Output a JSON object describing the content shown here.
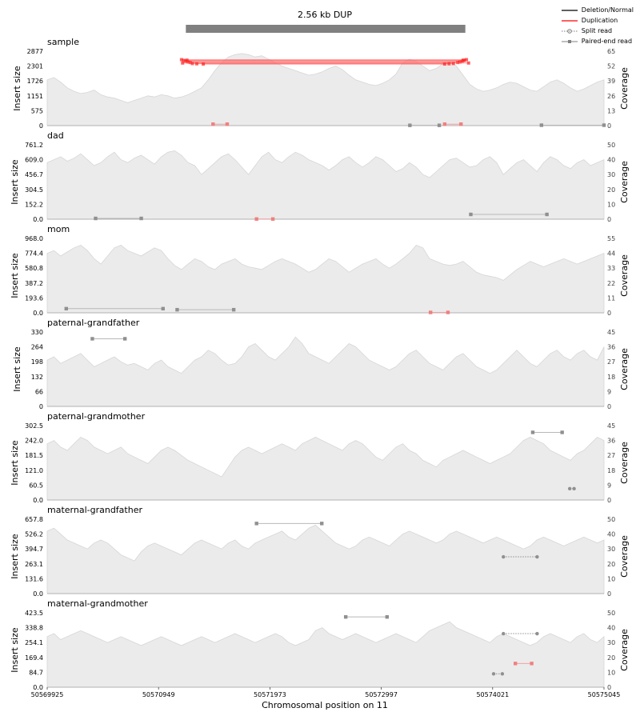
{
  "chart_data": {
    "type": "line",
    "title": "2.56 kb DUP",
    "xlabel": "Chromosomal position on 11",
    "x_ticks": [
      "50569925",
      "50570949",
      "50571973",
      "50572997",
      "50574021",
      "50575045"
    ],
    "xlim": [
      50569925,
      50575045
    ],
    "sv_interval": [
      50571200,
      50573770
    ],
    "left_axis_label": "Insert size",
    "right_axis_label": "Coverage",
    "legend": [
      {
        "label": "Deletion/Normal",
        "color": "#000000",
        "style": "solid"
      },
      {
        "label": "Duplication",
        "color": "#ff0000",
        "style": "solid"
      },
      {
        "label": "Split read",
        "color": "#808080",
        "style": "dotted-circle"
      },
      {
        "label": "Paired-end read",
        "color": "#808080",
        "style": "solid-square"
      }
    ],
    "samples": [
      {
        "name": "sample",
        "ylim": [
          0,
          2877
        ],
        "yticks": [
          "0",
          "575",
          "1151",
          "1726",
          "2301",
          "2877"
        ],
        "cov_max": 65,
        "cov_ticks": [
          "0",
          "13",
          "26",
          "39",
          "52",
          "65"
        ],
        "coverage_profile": [
          40,
          42,
          38,
          33,
          30,
          28,
          29,
          31,
          27,
          25,
          24,
          22,
          20,
          22,
          24,
          26,
          25,
          27,
          26,
          24,
          25,
          27,
          30,
          33,
          40,
          48,
          55,
          60,
          62,
          63,
          62,
          60,
          61,
          58,
          55,
          52,
          50,
          48,
          46,
          44,
          45,
          47,
          50,
          52,
          49,
          44,
          40,
          38,
          36,
          35,
          37,
          40,
          45,
          55,
          58,
          56,
          52,
          48,
          50,
          54,
          56,
          52,
          44,
          36,
          32,
          30,
          31,
          33,
          36,
          38,
          37,
          34,
          31,
          30,
          34,
          38,
          40,
          37,
          33,
          30,
          32,
          35,
          38,
          40
        ],
        "pairs": [
          {
            "type": "dup",
            "x1": 50571450,
            "x2": 50571580,
            "y": 55
          },
          {
            "type": "pe",
            "x1": 50573260,
            "x2": 50573530,
            "y": 10
          },
          {
            "type": "dup",
            "x1": 50573580,
            "x2": 50573730,
            "y": 56
          },
          {
            "type": "pe",
            "x1": 50574470,
            "x2": 50575045,
            "y": 16
          }
        ],
        "dup_arcs": [
          {
            "x1": 50571160,
            "x2": 50573780,
            "y": 2550
          },
          {
            "x1": 50571180,
            "x2": 50573760,
            "y": 2520
          },
          {
            "x1": 50571200,
            "x2": 50573740,
            "y": 2490
          },
          {
            "x1": 50571220,
            "x2": 50573720,
            "y": 2460
          },
          {
            "x1": 50571240,
            "x2": 50573700,
            "y": 2440
          },
          {
            "x1": 50571170,
            "x2": 50573800,
            "y": 2420
          },
          {
            "x1": 50571260,
            "x2": 50573660,
            "y": 2400
          },
          {
            "x1": 50571300,
            "x2": 50573620,
            "y": 2390
          },
          {
            "x1": 50571360,
            "x2": 50573580,
            "y": 2380
          },
          {
            "x1": 50571210,
            "x2": 50573750,
            "y": 2530
          }
        ]
      },
      {
        "name": "dad",
        "ylim": [
          0,
          761.2
        ],
        "yticks": [
          "0.0",
          "152.2",
          "304.5",
          "456.7",
          "609.0",
          "761.2"
        ],
        "cov_max": 50,
        "cov_ticks": [
          "0",
          "10",
          "20",
          "30",
          "40",
          "50"
        ],
        "coverage_profile": [
          38,
          40,
          42,
          39,
          41,
          44,
          40,
          36,
          38,
          42,
          45,
          40,
          38,
          41,
          43,
          40,
          37,
          42,
          45,
          46,
          43,
          38,
          36,
          30,
          34,
          38,
          42,
          44,
          40,
          35,
          30,
          36,
          42,
          45,
          40,
          38,
          42,
          45,
          43,
          40,
          38,
          36,
          33,
          36,
          40,
          42,
          38,
          35,
          38,
          42,
          40,
          36,
          32,
          34,
          38,
          35,
          30,
          28,
          32,
          36,
          40,
          41,
          38,
          35,
          36,
          40,
          42,
          38,
          30,
          34,
          38,
          40,
          36,
          32,
          38,
          42,
          40,
          36,
          34,
          38,
          40,
          36,
          38,
          40
        ],
        "pairs": [
          {
            "type": "pe",
            "x1": 50570370,
            "x2": 50570790,
            "y": 8
          },
          {
            "type": "dup",
            "x1": 50571850,
            "x2": 50572000,
            "y": 2
          },
          {
            "type": "pe",
            "x1": 50573820,
            "x2": 50574520,
            "y": 49
          }
        ]
      },
      {
        "name": "mom",
        "ylim": [
          0,
          968.0
        ],
        "yticks": [
          "0.0",
          "193.6",
          "387.2",
          "580.8",
          "774.4",
          "968.0"
        ],
        "cov_max": 55,
        "cov_ticks": [
          "0",
          "11",
          "22",
          "33",
          "44",
          "55"
        ],
        "coverage_profile": [
          44,
          46,
          42,
          45,
          48,
          50,
          46,
          40,
          36,
          42,
          48,
          50,
          46,
          44,
          42,
          45,
          48,
          46,
          40,
          35,
          32,
          36,
          40,
          38,
          34,
          32,
          36,
          38,
          40,
          36,
          34,
          33,
          32,
          35,
          38,
          40,
          38,
          36,
          33,
          30,
          32,
          36,
          40,
          38,
          34,
          30,
          33,
          36,
          38,
          40,
          36,
          33,
          36,
          40,
          44,
          50,
          48,
          40,
          38,
          36,
          35,
          36,
          38,
          34,
          30,
          28,
          27,
          26,
          24,
          28,
          32,
          35,
          38,
          36,
          34,
          36,
          38,
          40,
          38,
          36,
          38,
          40,
          42,
          44
        ],
        "pairs": [
          {
            "type": "pe",
            "x1": 50570100,
            "x2": 50570990,
            "y": 54
          },
          {
            "type": "pe",
            "x1": 50571120,
            "x2": 50571640,
            "y": 40
          },
          {
            "type": "dup",
            "x1": 50573450,
            "x2": 50573610,
            "y": 5
          }
        ]
      },
      {
        "name": "paternal-grandfather",
        "ylim": [
          0,
          330
        ],
        "yticks": [
          "0",
          "66",
          "132",
          "198",
          "264",
          "330"
        ],
        "cov_max": 45,
        "cov_ticks": [
          "0",
          "9",
          "18",
          "27",
          "36",
          "45"
        ],
        "coverage_profile": [
          28,
          30,
          26,
          28,
          30,
          32,
          28,
          24,
          26,
          28,
          30,
          27,
          25,
          26,
          24,
          22,
          26,
          28,
          24,
          22,
          20,
          24,
          28,
          30,
          34,
          32,
          28,
          25,
          26,
          30,
          36,
          38,
          34,
          30,
          28,
          32,
          36,
          42,
          38,
          32,
          30,
          28,
          26,
          30,
          34,
          38,
          36,
          32,
          28,
          26,
          24,
          22,
          24,
          28,
          32,
          34,
          30,
          26,
          24,
          22,
          26,
          30,
          32,
          28,
          24,
          22,
          20,
          22,
          26,
          30,
          34,
          30,
          26,
          24,
          28,
          32,
          34,
          30,
          28,
          32,
          34,
          30,
          28,
          36
        ],
        "pairs": [
          {
            "type": "pe",
            "x1": 50570340,
            "x2": 50570640,
            "y": 300
          }
        ]
      },
      {
        "name": "paternal-grandmother",
        "ylim": [
          0,
          302.5
        ],
        "yticks": [
          "0.0",
          "60.5",
          "121.0",
          "181.5",
          "242.0",
          "302.5"
        ],
        "cov_max": 45,
        "cov_ticks": [
          "0",
          "9",
          "18",
          "27",
          "36",
          "45"
        ],
        "coverage_profile": [
          34,
          36,
          32,
          30,
          34,
          38,
          36,
          32,
          30,
          28,
          30,
          32,
          28,
          26,
          24,
          22,
          26,
          30,
          32,
          30,
          27,
          24,
          22,
          20,
          18,
          16,
          14,
          20,
          26,
          30,
          32,
          30,
          28,
          30,
          32,
          34,
          32,
          30,
          34,
          36,
          38,
          36,
          34,
          32,
          30,
          34,
          36,
          34,
          30,
          26,
          24,
          28,
          32,
          34,
          30,
          28,
          24,
          22,
          20,
          24,
          26,
          28,
          30,
          28,
          26,
          24,
          22,
          24,
          26,
          28,
          32,
          36,
          38,
          36,
          34,
          30,
          28,
          26,
          24,
          28,
          30,
          34,
          38,
          36
        ],
        "pairs": [
          {
            "type": "pe",
            "x1": 50574390,
            "x2": 50574660,
            "y": 275
          },
          {
            "type": "split",
            "x1": 50574730,
            "x2": 50574770,
            "y": 46
          }
        ]
      },
      {
        "name": "maternal-grandfather",
        "ylim": [
          0,
          657.8
        ],
        "yticks": [
          "0.0",
          "131.6",
          "263.1",
          "394.7",
          "526.2",
          "657.8"
        ],
        "cov_max": 50,
        "cov_ticks": [
          "0",
          "10",
          "20",
          "30",
          "40",
          "50"
        ],
        "coverage_profile": [
          42,
          44,
          40,
          36,
          34,
          32,
          30,
          34,
          36,
          34,
          30,
          26,
          24,
          22,
          28,
          32,
          34,
          32,
          30,
          28,
          26,
          30,
          34,
          36,
          34,
          32,
          30,
          34,
          36,
          32,
          30,
          34,
          36,
          38,
          40,
          42,
          38,
          36,
          40,
          44,
          46,
          42,
          38,
          34,
          32,
          30,
          32,
          36,
          38,
          36,
          34,
          32,
          36,
          40,
          42,
          40,
          38,
          36,
          34,
          36,
          40,
          42,
          40,
          38,
          36,
          34,
          36,
          38,
          36,
          34,
          32,
          30,
          32,
          36,
          38,
          36,
          34,
          32,
          34,
          36,
          38,
          36,
          34,
          36
        ],
        "pairs": [
          {
            "type": "pe",
            "x1": 50571850,
            "x2": 50572450,
            "y": 620
          },
          {
            "type": "split",
            "x1": 50574120,
            "x2": 50574430,
            "y": 325
          }
        ]
      },
      {
        "name": "maternal-grandmother",
        "ylim": [
          0,
          423.5
        ],
        "yticks": [
          "0.0",
          "84.7",
          "169.4",
          "254.1",
          "338.8",
          "423.5"
        ],
        "cov_max": 50,
        "cov_ticks": [
          "0",
          "10",
          "20",
          "30",
          "40",
          "50"
        ],
        "coverage_profile": [
          34,
          36,
          32,
          34,
          36,
          38,
          36,
          34,
          32,
          30,
          32,
          34,
          32,
          30,
          28,
          30,
          32,
          34,
          32,
          30,
          28,
          30,
          32,
          34,
          32,
          30,
          32,
          34,
          36,
          34,
          32,
          30,
          32,
          34,
          36,
          34,
          30,
          28,
          30,
          32,
          38,
          40,
          36,
          34,
          32,
          34,
          36,
          34,
          32,
          30,
          32,
          34,
          36,
          34,
          32,
          30,
          34,
          38,
          40,
          42,
          44,
          40,
          38,
          36,
          34,
          32,
          30,
          34,
          36,
          34,
          32,
          30,
          28,
          30,
          34,
          36,
          34,
          32,
          30,
          34,
          36,
          32,
          30,
          34
        ],
        "pairs": [
          {
            "type": "pe",
            "x1": 50572670,
            "x2": 50573050,
            "y": 400
          },
          {
            "type": "split",
            "x1": 50574120,
            "x2": 50574430,
            "y": 305
          },
          {
            "type": "dup",
            "x1": 50574230,
            "x2": 50574380,
            "y": 135
          },
          {
            "type": "split",
            "x1": 50574030,
            "x2": 50574110,
            "y": 76
          }
        ]
      }
    ]
  }
}
